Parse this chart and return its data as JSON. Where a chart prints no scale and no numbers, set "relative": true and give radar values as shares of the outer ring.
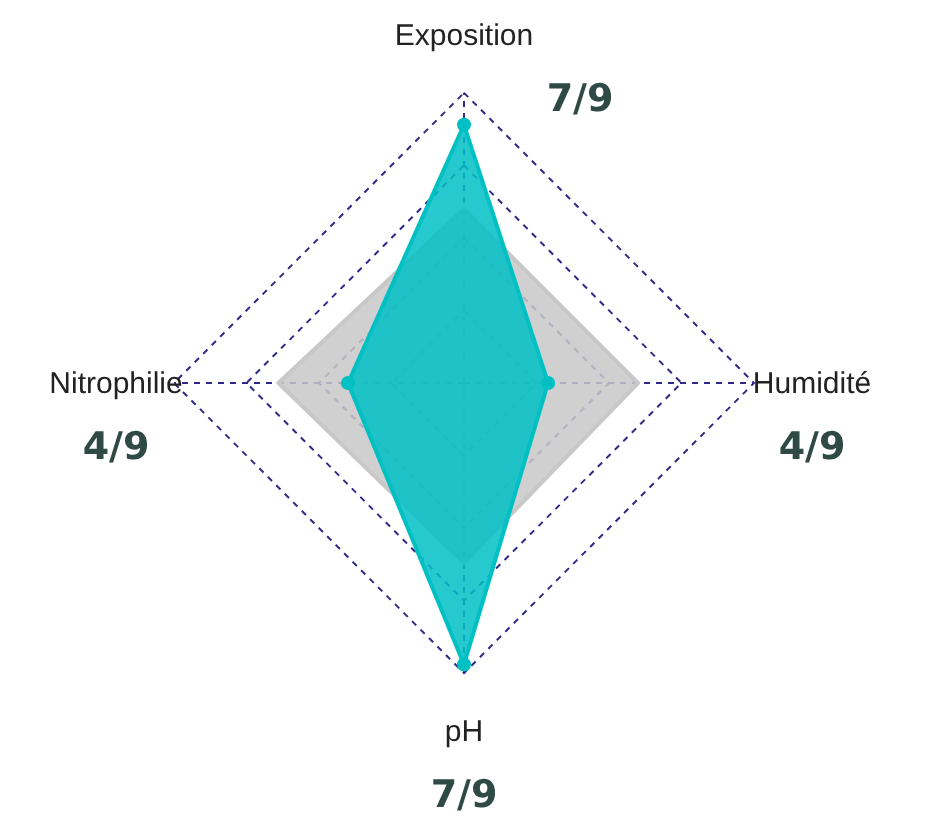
{
  "chart_data": {
    "type": "radar",
    "relative": true,
    "categories": [
      "Exposition",
      "Humidité",
      "pH",
      "Nitrophilie"
    ],
    "series": [
      {
        "color": "#c8c8c8",
        "values": [
          0.6,
          0.6,
          0.62,
          0.64
        ],
        "marker": "none"
      },
      {
        "color": "#00c0c4",
        "values": [
          0.89,
          0.29,
          0.97,
          0.4
        ],
        "marker": "circle"
      }
    ],
    "grid": true,
    "annotations": [
      "7/9",
      "4/9",
      "7/9",
      "4/9"
    ]
  }
}
